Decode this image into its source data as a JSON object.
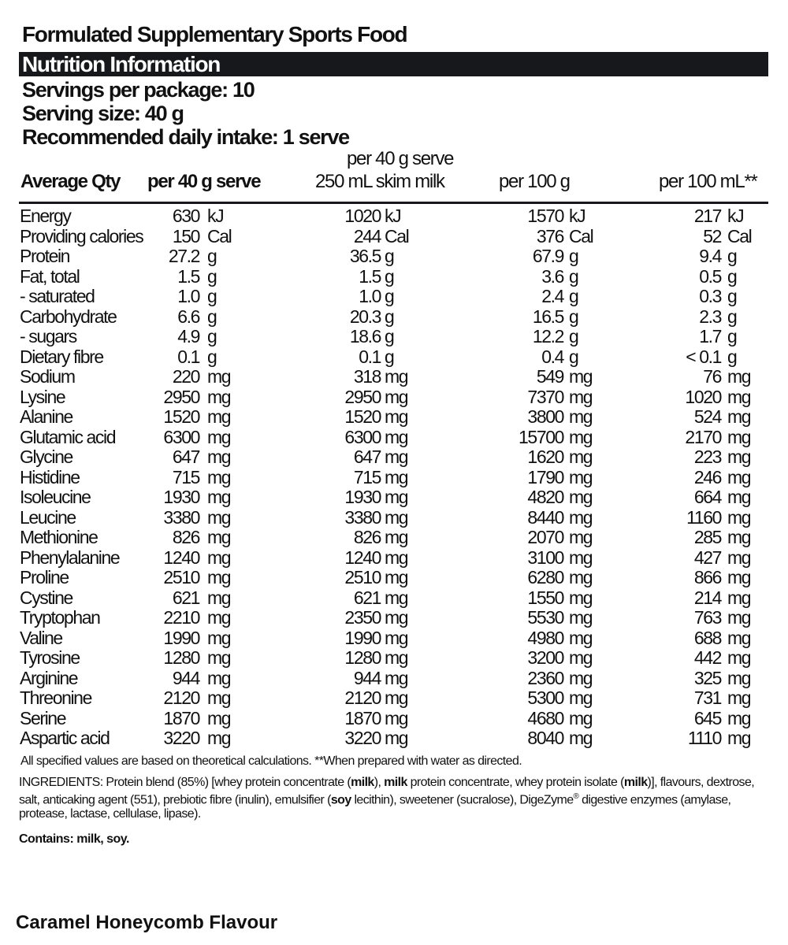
{
  "title": "Formulated Supplementary Sports Food",
  "panel_heading": "Nutrition Information",
  "servings_per_package": "Servings per package: 10",
  "serving_size": "Serving size: 40 g",
  "recommended_intake": "Recommended daily intake: 1 serve",
  "columns": {
    "label": "Average Qty",
    "col1": "per 40 g serve",
    "col2_line1": "per 40 g serve",
    "col2_line2": "250 mL skim milk",
    "col3": "per 100 g",
    "col4": "per 100 mL**"
  },
  "rows": [
    {
      "name": "Energy",
      "v1": "630",
      "u1": "kJ",
      "v2": "1020",
      "u2": "kJ",
      "v3": "1570",
      "u3": "kJ",
      "v4": "217",
      "u4": "kJ"
    },
    {
      "name": "Providing calories",
      "v1": "150",
      "u1": "Cal",
      "v2": "244",
      "u2": "Cal",
      "v3": "376",
      "u3": "Cal",
      "v4": "52",
      "u4": "Cal"
    },
    {
      "name": "Protein",
      "v1": "27.2",
      "u1": "g",
      "v2": "36.5",
      "u2": "g",
      "v3": "67.9",
      "u3": "g",
      "v4": "9.4",
      "u4": "g"
    },
    {
      "name": "Fat, total",
      "v1": "1.5",
      "u1": "g",
      "v2": "1.5",
      "u2": "g",
      "v3": "3.6",
      "u3": "g",
      "v4": "0.5",
      "u4": "g"
    },
    {
      "name": "- saturated",
      "v1": "1.0",
      "u1": "g",
      "v2": "1.0",
      "u2": "g",
      "v3": "2.4",
      "u3": "g",
      "v4": "0.3",
      "u4": "g"
    },
    {
      "name": "Carbohydrate",
      "v1": "6.6",
      "u1": "g",
      "v2": "20.3",
      "u2": "g",
      "v3": "16.5",
      "u3": "g",
      "v4": "2.3",
      "u4": "g"
    },
    {
      "name": "- sugars",
      "v1": "4.9",
      "u1": "g",
      "v2": "18.6",
      "u2": "g",
      "v3": "12.2",
      "u3": "g",
      "v4": "1.7",
      "u4": "g"
    },
    {
      "name": "Dietary fibre",
      "v1": "0.1",
      "u1": "g",
      "v2": "0.1",
      "u2": "g",
      "v3": "0.4",
      "u3": "g",
      "v4": "< 0.1",
      "u4": "g"
    },
    {
      "name": "Sodium",
      "v1": "220",
      "u1": "mg",
      "v2": "318",
      "u2": "mg",
      "v3": "549",
      "u3": "mg",
      "v4": "76",
      "u4": "mg"
    },
    {
      "name": "Lysine",
      "v1": "2950",
      "u1": "mg",
      "v2": "2950",
      "u2": "mg",
      "v3": "7370",
      "u3": "mg",
      "v4": "1020",
      "u4": "mg"
    },
    {
      "name": "Alanine",
      "v1": "1520",
      "u1": "mg",
      "v2": "1520",
      "u2": "mg",
      "v3": "3800",
      "u3": "mg",
      "v4": "524",
      "u4": "mg"
    },
    {
      "name": "Glutamic acid",
      "v1": "6300",
      "u1": "mg",
      "v2": "6300",
      "u2": "mg",
      "v3": "15700",
      "u3": "mg",
      "v4": "2170",
      "u4": "mg"
    },
    {
      "name": "Glycine",
      "v1": "647",
      "u1": "mg",
      "v2": "647",
      "u2": "mg",
      "v3": "1620",
      "u3": "mg",
      "v4": "223",
      "u4": "mg"
    },
    {
      "name": "Histidine",
      "v1": "715",
      "u1": "mg",
      "v2": "715",
      "u2": "mg",
      "v3": "1790",
      "u3": "mg",
      "v4": "246",
      "u4": "mg"
    },
    {
      "name": "Isoleucine",
      "v1": "1930",
      "u1": "mg",
      "v2": "1930",
      "u2": "mg",
      "v3": "4820",
      "u3": "mg",
      "v4": "664",
      "u4": "mg"
    },
    {
      "name": "Leucine",
      "v1": "3380",
      "u1": "mg",
      "v2": "3380",
      "u2": "mg",
      "v3": "8440",
      "u3": "mg",
      "v4": "1160",
      "u4": "mg"
    },
    {
      "name": "Methionine",
      "v1": "826",
      "u1": "mg",
      "v2": "826",
      "u2": "mg",
      "v3": "2070",
      "u3": "mg",
      "v4": "285",
      "u4": "mg"
    },
    {
      "name": "Phenylalanine",
      "v1": "1240",
      "u1": "mg",
      "v2": "1240",
      "u2": "mg",
      "v3": "3100",
      "u3": "mg",
      "v4": "427",
      "u4": "mg"
    },
    {
      "name": "Proline",
      "v1": "2510",
      "u1": "mg",
      "v2": "2510",
      "u2": "mg",
      "v3": "6280",
      "u3": "mg",
      "v4": "866",
      "u4": "mg"
    },
    {
      "name": "Cystine",
      "v1": "621",
      "u1": "mg",
      "v2": "621",
      "u2": "mg",
      "v3": "1550",
      "u3": "mg",
      "v4": "214",
      "u4": "mg"
    },
    {
      "name": "Tryptophan",
      "v1": "2210",
      "u1": "mg",
      "v2": "2350",
      "u2": "mg",
      "v3": "5530",
      "u3": "mg",
      "v4": "763",
      "u4": "mg"
    },
    {
      "name": "Valine",
      "v1": "1990",
      "u1": "mg",
      "v2": "1990",
      "u2": "mg",
      "v3": "4980",
      "u3": "mg",
      "v4": "688",
      "u4": "mg"
    },
    {
      "name": "Tyrosine",
      "v1": "1280",
      "u1": "mg",
      "v2": "1280",
      "u2": "mg",
      "v3": "3200",
      "u3": "mg",
      "v4": "442",
      "u4": "mg"
    },
    {
      "name": "Arginine",
      "v1": "944",
      "u1": "mg",
      "v2": "944",
      "u2": "mg",
      "v3": "2360",
      "u3": "mg",
      "v4": "325",
      "u4": "mg"
    },
    {
      "name": "Threonine",
      "v1": "2120",
      "u1": "mg",
      "v2": "2120",
      "u2": "mg",
      "v3": "5300",
      "u3": "mg",
      "v4": "731",
      "u4": "mg"
    },
    {
      "name": "Serine",
      "v1": "1870",
      "u1": "mg",
      "v2": "1870",
      "u2": "mg",
      "v3": "4680",
      "u3": "mg",
      "v4": "645",
      "u4": "mg"
    },
    {
      "name": "Aspartic acid",
      "v1": "3220",
      "u1": "mg",
      "v2": "3220",
      "u2": "mg",
      "v3": "8040",
      "u3": "mg",
      "v4": "1110",
      "u4": "mg"
    }
  ],
  "footnote": "All specified values are based on theoretical calculations. **When prepared with water as directed.",
  "ingredients": [
    {
      "text": "INGREDIENTS: Protein blend (85%) [whey protein concentrate (",
      "bold": false
    },
    {
      "text": "milk",
      "bold": true
    },
    {
      "text": "), ",
      "bold": false
    },
    {
      "text": "milk",
      "bold": true
    },
    {
      "text": " protein concentrate, whey protein isolate (",
      "bold": false
    },
    {
      "text": "milk",
      "bold": true
    },
    {
      "text": ")], flavours, dextrose, salt, anticaking agent (551), prebiotic fibre (inulin), emulsifier (",
      "bold": false
    },
    {
      "text": "soy",
      "bold": true
    },
    {
      "text": " lecithin), sweetener (sucralose), DigeZyme",
      "bold": false
    },
    {
      "text": "®",
      "sup": true
    },
    {
      "text": " digestive enzymes (amylase, protease, lactase, cellulase, lipase).",
      "bold": false
    }
  ],
  "contains": "Contains: milk, soy.",
  "flavour": "Caramel Honeycomb Flavour"
}
